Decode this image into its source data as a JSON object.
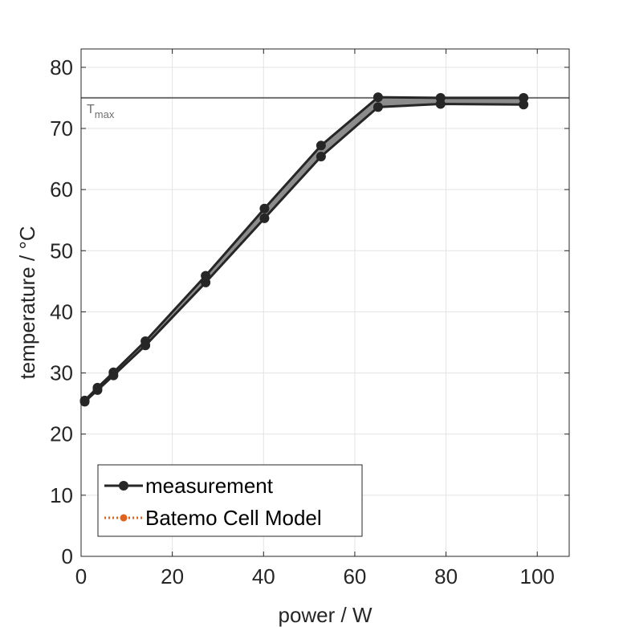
{
  "chart_data": {
    "type": "line",
    "xlabel": "power / W",
    "ylabel": "temperature / °C",
    "xlim": [
      0,
      107
    ],
    "ylim": [
      0,
      83
    ],
    "x_ticks": [
      0,
      20,
      40,
      60,
      80,
      100
    ],
    "y_ticks": [
      0,
      10,
      20,
      30,
      40,
      50,
      60,
      70,
      80
    ],
    "grid": true,
    "legend_position": "bottom-left",
    "reference_line": {
      "y": 75,
      "label_main": "T",
      "label_sub": "max",
      "color": "#6e6e6e"
    },
    "band": {
      "fill": "#8c8c8c",
      "edge": "#262626"
    },
    "series": [
      {
        "name": "measurement",
        "color": "#262626",
        "marker": "circle",
        "line_style": "solid",
        "upper": {
          "x": [
            0.8,
            3.6,
            7.1,
            14.1,
            27.3,
            40.2,
            52.6,
            65.1,
            78.8,
            97.0
          ],
          "y": [
            25.5,
            27.6,
            30.1,
            35.2,
            45.9,
            56.9,
            67.2,
            75.1,
            75.0,
            75.0
          ]
        },
        "lower": {
          "x": [
            0.8,
            3.6,
            7.1,
            14.1,
            27.3,
            40.2,
            52.6,
            65.1,
            78.8,
            97.0
          ],
          "y": [
            25.3,
            27.2,
            29.6,
            34.5,
            44.8,
            55.3,
            65.4,
            73.5,
            74.0,
            73.9
          ]
        }
      },
      {
        "name": "Batemo Cell Model",
        "color": "#e0621f",
        "marker": "circle",
        "line_style": "dotted"
      }
    ]
  }
}
